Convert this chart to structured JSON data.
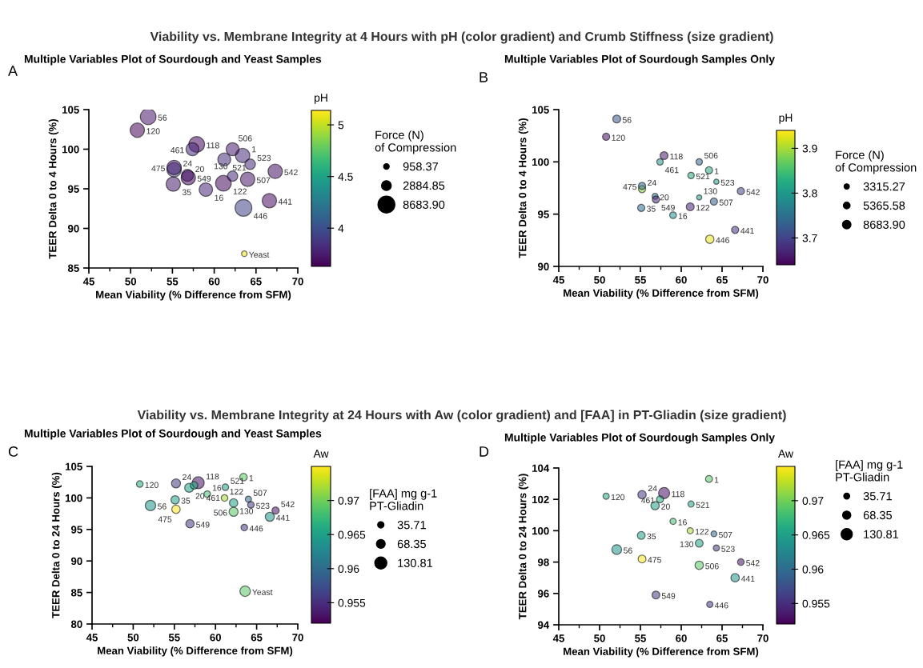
{
  "chart_data": [
    {
      "type": "bubble",
      "subtitle": "Viability vs. Membrane Integrity at 4 Hours with pH (color gradient) and Crumb Stiffness (size gradient)",
      "title": "Multiple Variables Plot of Sourdough and Yeast Samples",
      "xlabel": "Mean Viability (% Difference from SFM)",
      "ylabel": "TEER Delta 0 to 4 Hours (%)",
      "clabel": "pH",
      "legend_title": "Force (N)\nof Compression",
      "x": [
        63.4,
        59.0,
        56.8,
        55.2,
        55.1,
        52.1,
        57.9,
        50.8,
        61.1,
        62.2,
        66.6,
        63.5,
        57.4,
        55.2,
        62.2,
        64.0,
        61.2,
        64.3,
        67.3,
        56.9,
        63.6
      ],
      "values": [
        99.2,
        94.9,
        96.7,
        97.4,
        95.6,
        104.1,
        100.6,
        102.4,
        95.7,
        96.6,
        93.5,
        92.6,
        100.0,
        97.7,
        100.0,
        96.2,
        98.7,
        98.1,
        97.2,
        96.4,
        86.8
      ],
      "sizes": [
        6400,
        5600,
        4400,
        6400,
        6400,
        7700,
        7700,
        6400,
        7700,
        3315.27,
        6400,
        8683.9,
        5200,
        6400,
        5200,
        6400,
        5200,
        3400,
        6400,
        6400,
        958.37
      ],
      "cvalues": [
        3.82,
        3.79,
        3.77,
        3.89,
        3.75,
        3.72,
        3.66,
        3.65,
        3.67,
        3.81,
        3.68,
        3.93,
        3.8,
        3.74,
        3.74,
        3.73,
        3.82,
        3.81,
        3.7,
        3.67,
        5.1
      ],
      "size_legend": [
        958.37,
        2884.85,
        {
          "value": 8683.9,
          "label": "8683.90"
        }
      ],
      "clim": [
        3.63,
        5.14
      ],
      "cticks": [
        4,
        4.5,
        5
      ],
      "xlim": [
        45,
        70
      ],
      "xticks": [
        45,
        50,
        55,
        60,
        65,
        70
      ],
      "ylim": [
        85,
        105
      ],
      "yticks": [
        85,
        90,
        95,
        100,
        105
      ],
      "annotations": [
        "A",
        {
          "text": "1",
          "x": 63.4,
          "y": 99.2
        },
        {
          "text": "16",
          "x": 59.0,
          "y": 94.9
        },
        {
          "text": "20",
          "x": 56.8,
          "y": 96.7
        },
        {
          "text": "24",
          "x": 55.2,
          "y": 97.4
        },
        {
          "text": "35",
          "x": 55.1,
          "y": 95.6
        },
        {
          "text": "56",
          "x": 52.1,
          "y": 104.1
        },
        {
          "text": "118",
          "x": 57.9,
          "y": 100.6
        },
        {
          "text": "120",
          "x": 50.8,
          "y": 102.4
        },
        {
          "text": "122",
          "x": 61.1,
          "y": 95.7
        },
        {
          "text": "130",
          "x": 62.2,
          "y": 96.6
        },
        {
          "text": "441",
          "x": 66.6,
          "y": 93.5
        },
        {
          "text": "446",
          "x": 63.5,
          "y": 92.6
        },
        {
          "text": "461",
          "x": 57.4,
          "y": 100.0
        },
        {
          "text": "475",
          "x": 55.2,
          "y": 97.7
        },
        {
          "text": "506",
          "x": 62.2,
          "y": 100.0
        },
        {
          "text": "507",
          "x": 64.0,
          "y": 96.2
        },
        {
          "text": "521",
          "x": 61.2,
          "y": 98.7
        },
        {
          "text": "523",
          "x": 64.3,
          "y": 98.1
        },
        {
          "text": "542",
          "x": 67.3,
          "y": 97.2
        },
        {
          "text": "549",
          "x": 56.9,
          "y": 96.4
        },
        {
          "text": "Yeast",
          "x": 63.6,
          "y": 86.8
        }
      ]
    },
    {
      "type": "bubble",
      "title": "Multiple Variables Plot of Sourdough Samples Only",
      "xlabel": "Mean Viability (% Difference from SFM)",
      "ylabel": "TEER Delta 0 to 4 Hours (%)",
      "clabel": "pH",
      "legend_title": "Force (N)\nof Compression",
      "x": [
        63.4,
        59.0,
        56.8,
        55.2,
        55.1,
        52.1,
        57.9,
        50.8,
        61.1,
        62.2,
        66.6,
        63.5,
        57.4,
        55.2,
        62.2,
        64.0,
        61.2,
        64.3,
        67.3,
        56.9
      ],
      "values": [
        99.2,
        94.9,
        96.7,
        97.4,
        95.6,
        104.1,
        100.6,
        102.4,
        95.7,
        96.6,
        93.5,
        92.6,
        100.0,
        97.7,
        100.0,
        96.2,
        98.7,
        98.1,
        97.2,
        96.4
      ],
      "sizes": [
        6400,
        5600,
        4400,
        6400,
        6400,
        7700,
        7700,
        6400,
        7700,
        3315.27,
        6400,
        8683.9,
        5200,
        6400,
        5200,
        6400,
        5200,
        3400,
        6400,
        6400
      ],
      "cvalues": [
        3.82,
        3.79,
        3.77,
        3.89,
        3.75,
        3.72,
        3.66,
        3.65,
        3.67,
        3.81,
        3.68,
        3.93,
        3.8,
        3.74,
        3.74,
        3.73,
        3.82,
        3.81,
        3.7,
        3.67
      ],
      "size_legend": [
        3315.27,
        5365.58,
        {
          "value": 8683.9,
          "label": "8683.90"
        }
      ],
      "clim": [
        3.64,
        3.94
      ],
      "cticks": [
        3.7,
        3.8,
        3.9
      ],
      "xlim": [
        45,
        70
      ],
      "xticks": [
        45,
        50,
        55,
        60,
        65,
        70
      ],
      "ylim": [
        90,
        105
      ],
      "yticks": [
        90,
        95,
        100,
        105
      ],
      "annotations": [
        "B",
        {
          "text": "1",
          "x": 63.4,
          "y": 99.2
        },
        {
          "text": "16",
          "x": 59.0,
          "y": 94.9
        },
        {
          "text": "20",
          "x": 56.8,
          "y": 96.7
        },
        {
          "text": "24",
          "x": 55.2,
          "y": 97.4
        },
        {
          "text": "35",
          "x": 55.1,
          "y": 95.6
        },
        {
          "text": "56",
          "x": 52.1,
          "y": 104.1
        },
        {
          "text": "118",
          "x": 57.9,
          "y": 100.6
        },
        {
          "text": "120",
          "x": 50.8,
          "y": 102.4
        },
        {
          "text": "122",
          "x": 61.1,
          "y": 95.7
        },
        {
          "text": "130",
          "x": 62.2,
          "y": 96.6
        },
        {
          "text": "441",
          "x": 66.6,
          "y": 93.5
        },
        {
          "text": "446",
          "x": 63.5,
          "y": 92.6
        },
        {
          "text": "461",
          "x": 57.4,
          "y": 100.0
        },
        {
          "text": "475",
          "x": 55.2,
          "y": 97.7
        },
        {
          "text": "506",
          "x": 62.2,
          "y": 100.0
        },
        {
          "text": "507",
          "x": 64.0,
          "y": 96.2
        },
        {
          "text": "521",
          "x": 61.2,
          "y": 98.7
        },
        {
          "text": "523",
          "x": 64.3,
          "y": 98.1
        },
        {
          "text": "542",
          "x": 67.3,
          "y": 97.2
        },
        {
          "text": "549",
          "x": 56.9,
          "y": 96.4
        }
      ]
    },
    {
      "type": "bubble",
      "subtitle": "Viability vs. Membrane Integrity at 24 Hours with Aw (color gradient) and [FAA] in PT-Gliadin (size gradient)",
      "title": "Multiple Variables Plot of Sourdough and Yeast Samples",
      "xlabel": "Mean Viability (% Difference from SFM)",
      "ylabel": "TEER Delta 0 to 24 Hours (%)",
      "clabel": "Aw",
      "legend_title": "[FAA] mg g-1\nPT-Gliadin",
      "x": [
        63.4,
        59.0,
        56.8,
        55.2,
        55.1,
        52.1,
        57.9,
        50.8,
        61.1,
        62.2,
        66.6,
        63.5,
        57.4,
        55.2,
        62.2,
        64.0,
        61.2,
        64.3,
        67.3,
        56.9,
        63.6
      ],
      "values": [
        103.3,
        100.6,
        101.6,
        102.3,
        99.7,
        98.8,
        102.4,
        102.2,
        100.0,
        99.2,
        97.0,
        95.3,
        102.0,
        98.2,
        97.8,
        99.8,
        101.7,
        98.9,
        98.0,
        95.9,
        85.2
      ],
      "sizes": [
        51,
        40,
        74,
        74,
        64,
        100,
        130.81,
        40,
        40,
        64,
        74,
        40,
        51,
        64,
        74,
        35.71,
        40,
        40,
        47,
        64,
        100
      ],
      "cvalues": [
        0.969,
        0.968,
        0.965,
        0.956,
        0.965,
        0.964,
        0.953,
        0.966,
        0.972,
        0.965,
        0.964,
        0.956,
        0.966,
        0.975,
        0.969,
        0.96,
        0.965,
        0.956,
        0.953,
        0.956,
        0.969
      ],
      "size_legend": [
        35.71,
        68.35,
        130.81
      ],
      "clim": [
        0.952,
        0.975
      ],
      "cticks": [
        0.955,
        0.96,
        0.965,
        0.97
      ],
      "xlim": [
        45,
        70
      ],
      "xticks": [
        45,
        50,
        55,
        60,
        65,
        70
      ],
      "ylim": [
        80,
        105
      ],
      "yticks": [
        80,
        85,
        90,
        95,
        100,
        105
      ],
      "annotations": [
        "C",
        {
          "text": "1",
          "x": 63.4,
          "y": 103.3
        },
        {
          "text": "16",
          "x": 59.0,
          "y": 100.6
        },
        {
          "text": "20",
          "x": 56.8,
          "y": 101.6
        },
        {
          "text": "24",
          "x": 55.2,
          "y": 102.3
        },
        {
          "text": "35",
          "x": 55.1,
          "y": 99.7
        },
        {
          "text": "56",
          "x": 52.1,
          "y": 98.8
        },
        {
          "text": "118",
          "x": 57.9,
          "y": 102.4
        },
        {
          "text": "120",
          "x": 50.8,
          "y": 102.2
        },
        {
          "text": "122",
          "x": 61.1,
          "y": 100.0
        },
        {
          "text": "130",
          "x": 62.2,
          "y": 99.2
        },
        {
          "text": "441",
          "x": 66.6,
          "y": 97.0
        },
        {
          "text": "446",
          "x": 63.5,
          "y": 95.3
        },
        {
          "text": "461",
          "x": 57.4,
          "y": 102.0
        },
        {
          "text": "475",
          "x": 55.2,
          "y": 98.2
        },
        {
          "text": "506",
          "x": 62.2,
          "y": 97.8
        },
        {
          "text": "507",
          "x": 64.0,
          "y": 99.8
        },
        {
          "text": "521",
          "x": 61.2,
          "y": 101.7
        },
        {
          "text": "523",
          "x": 64.3,
          "y": 98.9
        },
        {
          "text": "542",
          "x": 67.3,
          "y": 98.0
        },
        {
          "text": "549",
          "x": 56.9,
          "y": 95.9
        },
        {
          "text": "Yeast",
          "x": 63.6,
          "y": 85.2
        }
      ]
    },
    {
      "type": "bubble",
      "title": "Multiple Variables Plot of Sourdough Samples Only",
      "xlabel": "Mean Viability (% Difference from SFM)",
      "ylabel": "TEER Delta 0 to 24 Hours (%)",
      "clabel": "Aw",
      "legend_title": "[FAA] mg g-1\nPT-Gliadin",
      "x": [
        63.4,
        59.0,
        56.8,
        55.2,
        55.1,
        52.1,
        57.9,
        50.8,
        61.1,
        62.2,
        66.6,
        63.5,
        57.4,
        55.2,
        62.2,
        64.0,
        61.2,
        64.3,
        67.3,
        56.9
      ],
      "values": [
        103.3,
        100.6,
        101.6,
        102.3,
        99.7,
        98.8,
        102.4,
        102.2,
        100.0,
        99.2,
        97.0,
        95.3,
        102.0,
        98.2,
        97.8,
        99.8,
        101.7,
        98.9,
        98.0,
        95.9
      ],
      "sizes": [
        51,
        40,
        74,
        74,
        64,
        100,
        130.81,
        40,
        40,
        64,
        74,
        40,
        51,
        64,
        74,
        35.71,
        40,
        40,
        47,
        64
      ],
      "cvalues": [
        0.969,
        0.968,
        0.965,
        0.956,
        0.965,
        0.964,
        0.953,
        0.966,
        0.972,
        0.965,
        0.964,
        0.956,
        0.966,
        0.975,
        0.969,
        0.96,
        0.965,
        0.956,
        0.953,
        0.956
      ],
      "size_legend": [
        35.71,
        68.35,
        130.81
      ],
      "clim": [
        0.952,
        0.975
      ],
      "cticks": [
        0.955,
        0.96,
        0.965,
        0.97
      ],
      "xlim": [
        45,
        70
      ],
      "xticks": [
        45,
        50,
        55,
        60,
        65,
        70
      ],
      "ylim": [
        94,
        104
      ],
      "yticks": [
        94,
        96,
        98,
        100,
        102,
        104
      ],
      "annotations": [
        "D",
        {
          "text": "1",
          "x": 63.4,
          "y": 103.3
        },
        {
          "text": "16",
          "x": 59.0,
          "y": 100.6
        },
        {
          "text": "20",
          "x": 56.8,
          "y": 101.6
        },
        {
          "text": "24",
          "x": 55.2,
          "y": 102.3
        },
        {
          "text": "35",
          "x": 55.1,
          "y": 99.7
        },
        {
          "text": "56",
          "x": 52.1,
          "y": 98.8
        },
        {
          "text": "118",
          "x": 57.9,
          "y": 102.4
        },
        {
          "text": "120",
          "x": 50.8,
          "y": 102.2
        },
        {
          "text": "122",
          "x": 61.1,
          "y": 100.0
        },
        {
          "text": "130",
          "x": 62.2,
          "y": 99.2
        },
        {
          "text": "441",
          "x": 66.6,
          "y": 97.0
        },
        {
          "text": "446",
          "x": 63.5,
          "y": 95.3
        },
        {
          "text": "461",
          "x": 57.4,
          "y": 102.0
        },
        {
          "text": "475",
          "x": 55.2,
          "y": 98.2
        },
        {
          "text": "506",
          "x": 62.2,
          "y": 97.8
        },
        {
          "text": "507",
          "x": 64.0,
          "y": 99.8
        },
        {
          "text": "521",
          "x": 61.2,
          "y": 101.7
        },
        {
          "text": "523",
          "x": 64.3,
          "y": 98.9
        },
        {
          "text": "542",
          "x": 67.3,
          "y": 98.0
        },
        {
          "text": "549",
          "x": 56.9,
          "y": 95.9
        }
      ]
    }
  ]
}
